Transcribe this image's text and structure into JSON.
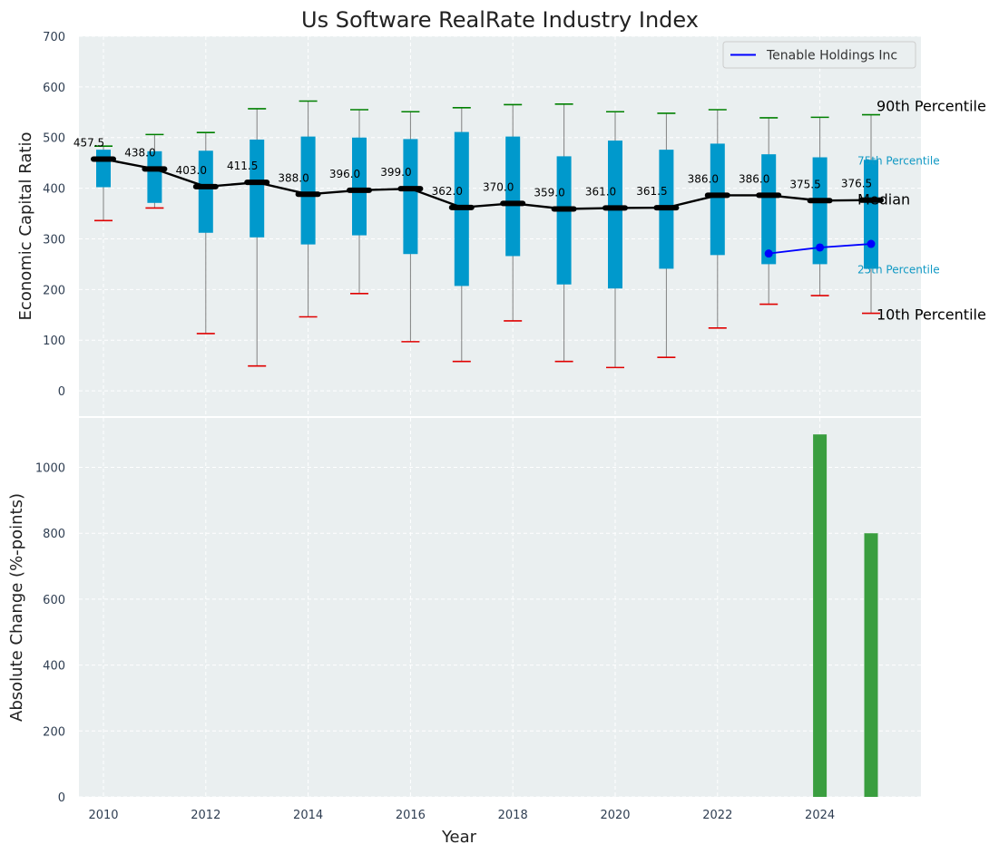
{
  "chart_data": [
    {
      "type": "box",
      "title": "Us Software RealRate Industry Index",
      "ylabel": "Economic Capital Ratio",
      "ylim": [
        -50,
        700
      ],
      "yticks": [
        0,
        100,
        200,
        300,
        400,
        500,
        600,
        700
      ],
      "years": [
        2010,
        2011,
        2012,
        2013,
        2014,
        2015,
        2016,
        2017,
        2018,
        2019,
        2020,
        2021,
        2022,
        2023,
        2024,
        2025
      ],
      "p10": [
        336,
        361,
        113,
        49,
        146,
        192,
        97,
        58,
        138,
        58,
        46,
        66,
        124,
        171,
        188,
        153
      ],
      "p25": [
        402,
        371,
        312,
        303,
        289,
        307,
        270,
        207,
        266,
        210,
        202,
        241,
        268,
        250,
        250,
        241
      ],
      "median": [
        457.5,
        438.0,
        403.0,
        411.5,
        388.0,
        396.0,
        399.0,
        362.0,
        370.0,
        359.0,
        361.0,
        361.5,
        386.0,
        386.0,
        375.5,
        376.5
      ],
      "median_labels": [
        "457.5",
        "438.0",
        "403.0",
        "411.5",
        "388.0",
        "396.0",
        "399.0",
        "362.0",
        "370.0",
        "359.0",
        "361.0",
        "361.5",
        "386.0",
        "386.0",
        "375.5",
        "376.5"
      ],
      "p75": [
        476,
        473,
        474,
        496,
        502,
        500,
        497,
        511,
        502,
        463,
        494,
        476,
        488,
        467,
        461,
        456
      ],
      "p90": [
        483,
        506,
        510,
        557,
        572,
        555,
        551,
        559,
        565,
        566,
        551,
        548,
        555,
        539,
        540,
        545
      ],
      "series": [
        {
          "name": "Tenable Holdings Inc",
          "color": "#0000ff",
          "x": [
            2023,
            2024,
            2025
          ],
          "y": [
            271,
            283,
            290
          ]
        }
      ],
      "legend_position": "top-right",
      "annotations": {
        "p90": "90th Percentile",
        "p75": "75th Percentile",
        "median": "Median",
        "p25": "25th Percentile",
        "p10": "10th Percentile"
      },
      "colors": {
        "box": "#0099cc",
        "median_line": "#000000",
        "p90_cap": "#008000",
        "p10_cap": "#e00000",
        "whisker": "#808080",
        "background": "#eaeff0"
      }
    },
    {
      "type": "bar",
      "xlabel": "Year",
      "ylabel": "Absolute Change (%-points)",
      "ylim": [
        0,
        1150
      ],
      "yticks": [
        0,
        200,
        400,
        600,
        800,
        1000
      ],
      "x": [
        2024,
        2025
      ],
      "values": [
        1100,
        800
      ],
      "color": "#3a9e3f",
      "xticks": [
        2010,
        2012,
        2014,
        2016,
        2018,
        2020,
        2022,
        2024
      ]
    }
  ]
}
